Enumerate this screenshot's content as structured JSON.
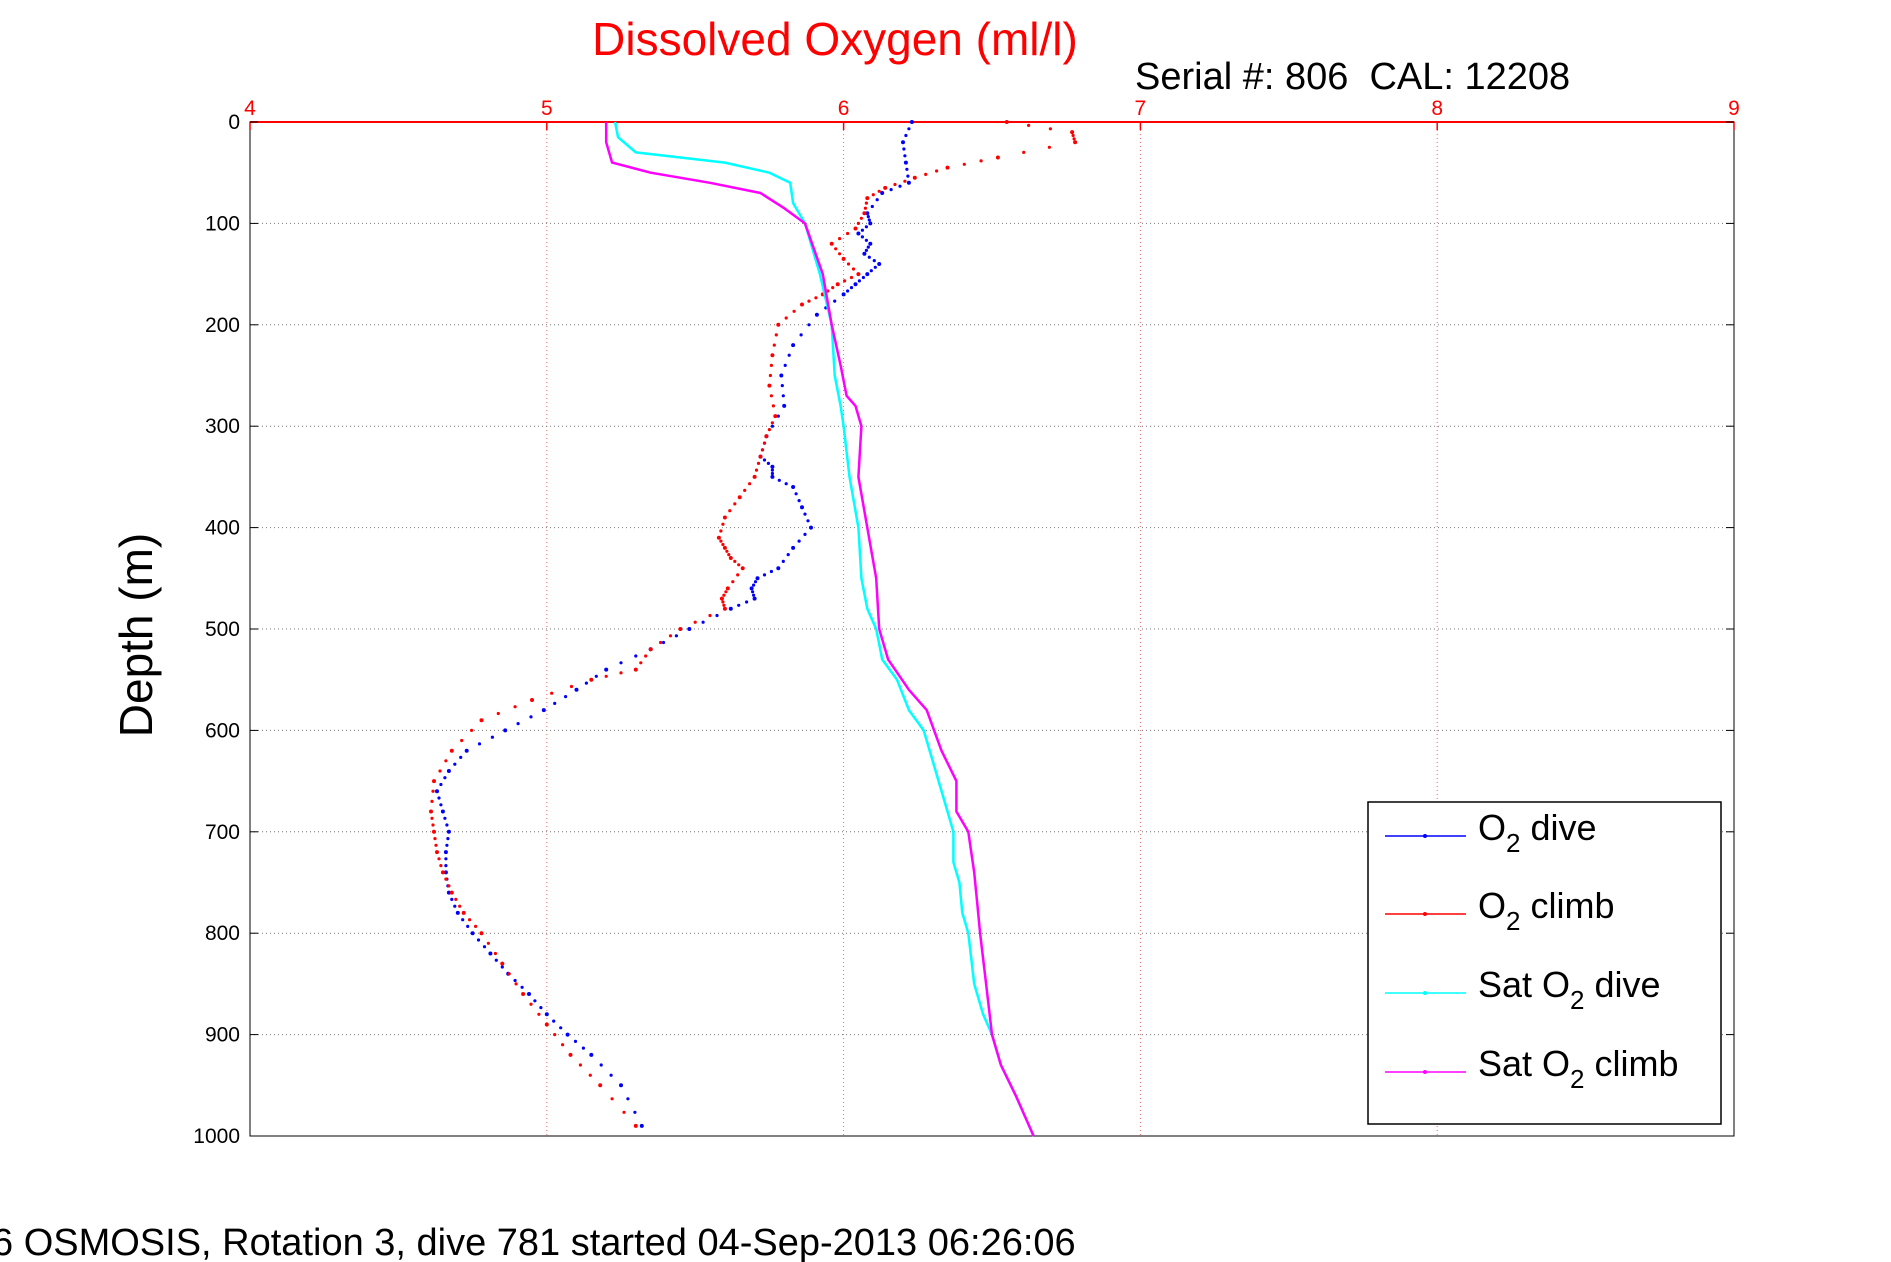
{
  "chart_data": {
    "type": "scatter",
    "title": "Dissolved Oxygen (ml/l)",
    "subtitle": "Serial #: 806  CAL: 12208",
    "ylabel": "Depth (m)",
    "xlabel": "",
    "footer": "6 OSMOSIS, Rotation 3, dive 781 started 04-Sep-2013 06:26:06",
    "xlim": [
      4,
      9
    ],
    "ylim": [
      0,
      1000
    ],
    "y_reversed": true,
    "x_axis_position": "top",
    "xticks": [
      "4",
      "5",
      "6",
      "7",
      "8",
      "9"
    ],
    "yticks": [
      "0",
      "100",
      "200",
      "300",
      "400",
      "500",
      "600",
      "700",
      "800",
      "900",
      "1000"
    ],
    "grid": true,
    "legend_position": "bottom-right",
    "colors": {
      "title": "#ff0000",
      "xtick": "#ff0000",
      "grid": "#c8c8c8",
      "dive": "#0000ff",
      "climb": "#ff0000",
      "sat_dive": "#00ffff",
      "sat_climb": "#ff00ff"
    },
    "series": [
      {
        "name": "O2 dive",
        "legend": {
          "base": "O",
          "sub": "2",
          "rest": " dive"
        },
        "color": "#0000ff",
        "style": "dots",
        "x": [
          6.23,
          6.2,
          6.21,
          6.22,
          6.13,
          6.08,
          6.09,
          6.05,
          6.09,
          6.07,
          6.12,
          6.08,
          6.04,
          6.0,
          5.91,
          5.83,
          5.79,
          5.8,
          5.74,
          5.72,
          5.76,
          5.76,
          5.83,
          5.86,
          5.89,
          5.83,
          5.78,
          5.71,
          5.69,
          5.7,
          5.62,
          5.48,
          5.35,
          5.2,
          5.1,
          4.99,
          4.86,
          4.73,
          4.67,
          4.63,
          4.65,
          4.67,
          4.66,
          4.66,
          4.67,
          4.7,
          4.75,
          4.81,
          4.87,
          4.94,
          5.0,
          5.07,
          5.15,
          5.25,
          5.32
        ],
        "y": [
          0,
          20,
          40,
          60,
          70,
          90,
          100,
          110,
          120,
          130,
          140,
          150,
          160,
          170,
          190,
          220,
          250,
          280,
          310,
          330,
          340,
          350,
          360,
          380,
          400,
          420,
          440,
          450,
          460,
          470,
          480,
          500,
          520,
          540,
          560,
          580,
          600,
          620,
          640,
          660,
          680,
          700,
          720,
          740,
          760,
          780,
          800,
          820,
          840,
          860,
          880,
          900,
          920,
          950,
          990
        ]
      },
      {
        "name": "O2 climb",
        "legend": {
          "base": "O",
          "sub": "2",
          "rest": " climb"
        },
        "color": "#ff0000",
        "style": "dots",
        "x": [
          6.55,
          6.77,
          6.78,
          6.52,
          6.35,
          6.24,
          6.14,
          6.08,
          6.07,
          6.04,
          5.96,
          6.0,
          6.05,
          5.98,
          5.93,
          5.86,
          5.78,
          5.76,
          5.75,
          5.77,
          5.74,
          5.72,
          5.7,
          5.65,
          5.6,
          5.58,
          5.6,
          5.62,
          5.66,
          5.61,
          5.59,
          5.6,
          5.45,
          5.35,
          5.3,
          5.15,
          4.95,
          4.78,
          4.68,
          4.62,
          4.61,
          4.62,
          4.63,
          4.65,
          4.68,
          4.72,
          4.78,
          4.85,
          4.92,
          5.0,
          5.08,
          5.18,
          5.3
        ],
        "y": [
          0,
          10,
          20,
          35,
          45,
          55,
          65,
          75,
          90,
          105,
          120,
          135,
          150,
          160,
          170,
          180,
          200,
          230,
          260,
          290,
          310,
          330,
          350,
          370,
          390,
          410,
          420,
          430,
          440,
          460,
          470,
          480,
          500,
          520,
          540,
          550,
          570,
          590,
          620,
          650,
          680,
          700,
          720,
          740,
          760,
          780,
          800,
          830,
          860,
          890,
          920,
          950,
          990
        ]
      },
      {
        "name": "Sat O2 dive",
        "legend": {
          "base": "Sat O",
          "sub": "2",
          "rest": " dive"
        },
        "color": "#00ffff",
        "style": "line",
        "x": [
          5.23,
          5.24,
          5.3,
          5.6,
          5.75,
          5.82,
          5.83,
          5.87,
          5.92,
          5.96,
          5.97,
          5.99,
          6.0,
          6.02,
          6.05,
          6.06,
          6.08,
          6.11,
          6.13,
          6.18,
          6.22,
          6.27,
          6.32,
          6.35,
          6.37,
          6.37,
          6.39,
          6.4,
          6.42,
          6.44,
          6.47,
          6.5,
          6.53,
          6.58,
          6.64
        ],
        "y": [
          0,
          15,
          30,
          40,
          50,
          60,
          80,
          100,
          150,
          200,
          250,
          280,
          300,
          350,
          400,
          450,
          480,
          500,
          530,
          550,
          580,
          600,
          650,
          680,
          700,
          730,
          750,
          780,
          800,
          850,
          880,
          900,
          930,
          960,
          1000
        ]
      },
      {
        "name": "Sat O2 climb",
        "legend": {
          "base": "Sat O",
          "sub": "2",
          "rest": " climb"
        },
        "color": "#ff00ff",
        "style": "line",
        "x": [
          5.2,
          5.2,
          5.22,
          5.35,
          5.55,
          5.72,
          5.8,
          5.87,
          5.93,
          5.96,
          5.99,
          6.01,
          6.04,
          6.06,
          6.05,
          6.08,
          6.11,
          6.12,
          6.15,
          6.22,
          6.28,
          6.33,
          6.38,
          6.38,
          6.42,
          6.44,
          6.45,
          6.46,
          6.48,
          6.5,
          6.53,
          6.58,
          6.64
        ],
        "y": [
          0,
          20,
          40,
          50,
          60,
          70,
          85,
          100,
          150,
          200,
          240,
          270,
          280,
          300,
          350,
          400,
          450,
          500,
          530,
          560,
          580,
          620,
          650,
          680,
          700,
          740,
          770,
          800,
          850,
          900,
          930,
          960,
          1000
        ]
      }
    ]
  }
}
